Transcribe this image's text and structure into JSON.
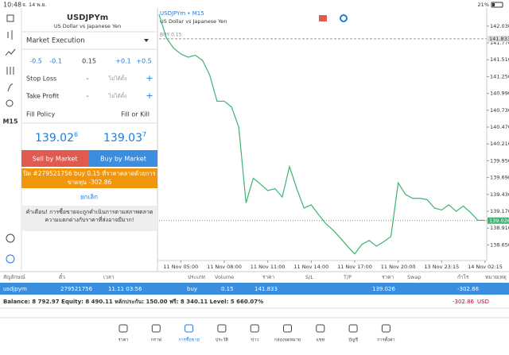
{
  "status": {
    "time": "10:48",
    "date": "จ. 14 พ.ย.",
    "battery": "21%"
  },
  "sidebar": {
    "timeframe": "M15"
  },
  "order": {
    "symbol": "USDJPYm",
    "description": "US Dollar vs Japanese Yen",
    "execution": "Market Execution",
    "volume_steps": [
      "-0.5",
      "-0.1",
      "0.15",
      "+0.1",
      "+0.5"
    ],
    "stop_loss": {
      "label": "Stop Loss",
      "minus": "-",
      "value": "ไม่ได้ตั้ง",
      "plus": "+"
    },
    "take_profit": {
      "label": "Take Profit",
      "minus": "-",
      "value": "ไม่ได้ตั้ง",
      "plus": "+"
    },
    "fill_policy": {
      "label": "Fill Policy",
      "value": "Fill or Kill"
    },
    "bid": {
      "main": "139.02",
      "small": "6"
    },
    "ask": {
      "main": "139.03",
      "small": "7"
    },
    "sell_button": "Sell by Market",
    "buy_button": "Buy by Market",
    "close_button": "ปิด #279521756 buy 0.15 ที่ราคาตลาดด้วยการขาดทุน -302.86",
    "cancel": "ยกเลิก",
    "warning": "คำเตือน! การซื้อขายจะถูกดำเนินการตามสภาพตลาด ความแตกต่างกับราคาที่ส่งอาจมีมาก!"
  },
  "chart_data": {
    "type": "line",
    "title": "USDJPYm • M15",
    "subtitle": "US Dollar vs Japanese Yen",
    "categories": [
      null,
      null,
      null,
      "11 Nov 05:00",
      null,
      null,
      null,
      null,
      null,
      "11 Nov 08:00",
      null,
      null,
      null,
      null,
      null,
      "11 Nov 11:00",
      null,
      null,
      null,
      null,
      null,
      "11 Nov 14:00",
      null,
      null,
      null,
      null,
      null,
      "11 Nov 17:00",
      null,
      null,
      null,
      null,
      null,
      "11 Nov 20:00",
      null,
      null,
      null,
      null,
      null,
      "13 Nov 23:15",
      null,
      null,
      null,
      null,
      null,
      "14 Nov 02:15"
    ],
    "series": [
      {
        "name": "USDJPYm",
        "color": "#3cb371",
        "values": [
          142.21,
          141.85,
          141.69,
          141.6,
          141.55,
          141.58,
          141.5,
          141.27,
          140.87,
          140.87,
          140.78,
          140.47,
          139.3,
          139.68,
          139.59,
          139.49,
          139.52,
          139.39,
          139.86,
          139.52,
          139.22,
          139.27,
          139.12,
          138.98,
          138.88,
          138.76,
          138.63,
          138.51,
          138.66,
          138.72,
          138.63,
          138.7,
          138.78,
          139.61,
          139.43,
          139.37,
          139.37,
          139.35,
          139.22,
          139.19,
          139.27,
          139.17,
          139.25,
          139.15,
          139.03,
          139.03
        ]
      }
    ],
    "ylim": [
      138.41,
      142.31
    ],
    "yticks": [
      {
        "value": 142.03,
        "label": "142.030"
      },
      {
        "value": 141.77,
        "label": "141.770"
      },
      {
        "value": 141.51,
        "label": "141.510"
      },
      {
        "value": 141.25,
        "label": "141.250"
      },
      {
        "value": 140.99,
        "label": "140.990"
      },
      {
        "value": 140.73,
        "label": "140.730"
      },
      {
        "value": 140.47,
        "label": "140.470"
      },
      {
        "value": 140.21,
        "label": "140.210"
      },
      {
        "value": 139.95,
        "label": "139.950"
      },
      {
        "value": 139.69,
        "label": "139.690"
      },
      {
        "value": 139.43,
        "label": "139.430"
      },
      {
        "value": 139.17,
        "label": "139.170"
      },
      {
        "value": 138.91,
        "label": "138.910"
      },
      {
        "value": 138.65,
        "label": "138.650"
      }
    ],
    "grid": false,
    "buy_line": {
      "label": "BUY 0.15",
      "value": 141.833
    },
    "bid_line": {
      "value": 139.026,
      "color": "#3cb371"
    }
  },
  "positions": {
    "headers": [
      "สัญลักษณ์",
      "ตั๋ว",
      "เวลา",
      "ประเภท",
      "Volume",
      "ราคา",
      "S/L",
      "T/P",
      "ราคา",
      "Swap",
      "กำไร",
      "หมายเหตุ"
    ],
    "row": {
      "symbol": "usdjpym",
      "ticket": "279521756",
      "time": "11.11 03:56",
      "type": "buy",
      "volume": "0.15",
      "price": "141.833",
      "current_price": "139.026",
      "profit": "-302.86"
    },
    "summary": "Balance: 8 792.97 Equity: 8 490.11 หลักประกัน: 150.00 ฟรี: 8 340.11 Level: 5 660.07%",
    "total": "-302.86",
    "currency": "USD"
  },
  "tabs": [
    "ราคา",
    "กราฟ",
    "การซื้อขาย",
    "ประวัติ",
    "ข่าว",
    "กล่องจดหมาย",
    "แชท",
    "บัญชี",
    "การตั้งค่า"
  ]
}
